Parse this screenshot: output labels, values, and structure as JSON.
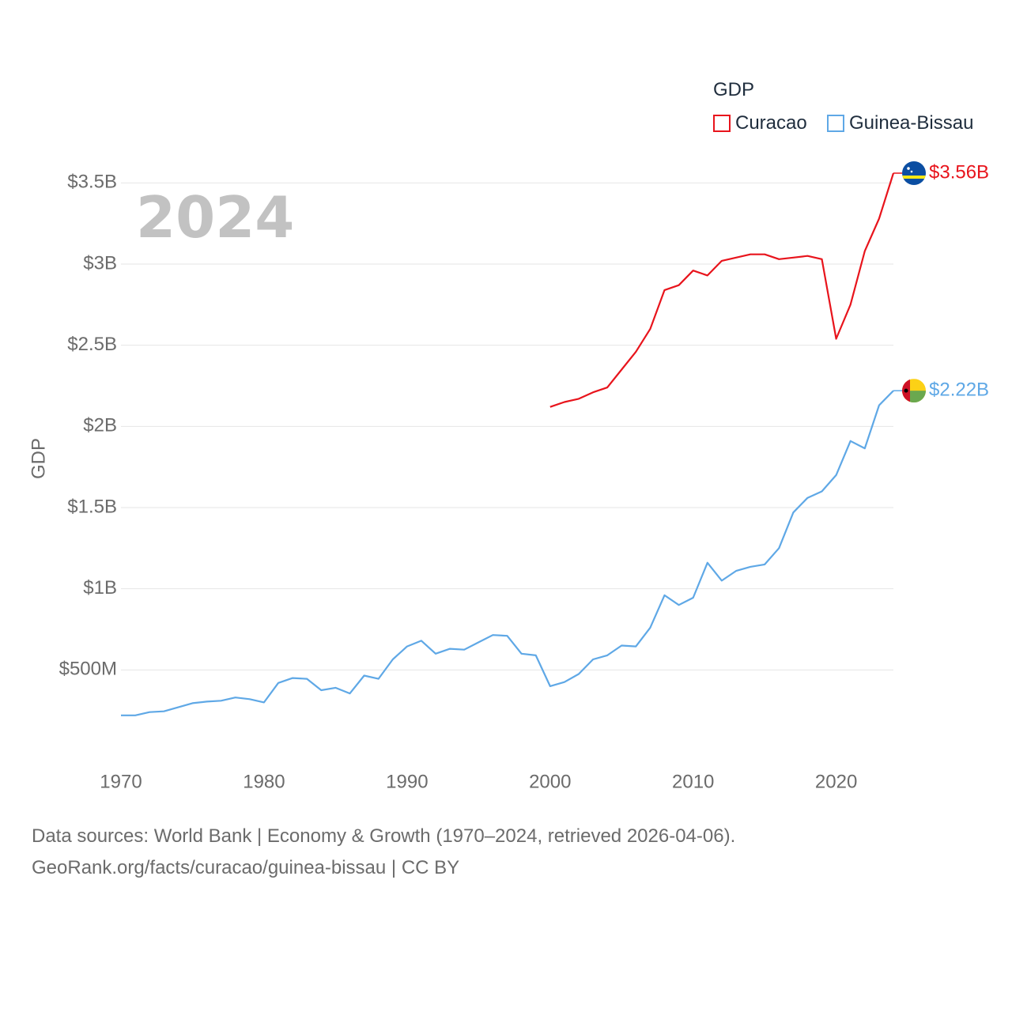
{
  "legend": {
    "title": "GDP",
    "items": [
      {
        "label": "Curacao",
        "color": "#e8141c"
      },
      {
        "label": "Guinea-Bissau",
        "color": "#5fa8e6"
      }
    ]
  },
  "source": {
    "line1": "Data sources: World Bank | Economy & Growth (1970–2024, retrieved 2026-04-06).",
    "line2": "GeoRank.org/facts/curacao/guinea-bissau | CC BY"
  },
  "chart_data": {
    "type": "line",
    "title": "",
    "year_label": "2024",
    "xlabel": "",
    "ylabel": "GDP",
    "xlim": [
      1970,
      2024
    ],
    "ylim": [
      0,
      3.75
    ],
    "x_ticks": [
      1970,
      1980,
      1990,
      2000,
      2010,
      2020
    ],
    "y_ticks": [
      {
        "value": 0.5,
        "label": "$500M"
      },
      {
        "value": 1.0,
        "label": "$1B"
      },
      {
        "value": 1.5,
        "label": "$1.5B"
      },
      {
        "value": 2.0,
        "label": "$2B"
      },
      {
        "value": 2.5,
        "label": "$2.5B"
      },
      {
        "value": 3.0,
        "label": "$3B"
      },
      {
        "value": 3.5,
        "label": "$3.5B"
      }
    ],
    "series": [
      {
        "name": "Curacao",
        "color": "#e8141c",
        "end_label": "$3.56B",
        "flag": "curacao-flag-icon",
        "x": [
          2000,
          2001,
          2002,
          2003,
          2004,
          2005,
          2006,
          2007,
          2008,
          2009,
          2010,
          2011,
          2012,
          2013,
          2014,
          2015,
          2016,
          2017,
          2018,
          2019,
          2020,
          2021,
          2022,
          2023,
          2024
        ],
        "values": [
          2.12,
          2.15,
          2.17,
          2.21,
          2.24,
          2.35,
          2.46,
          2.6,
          2.84,
          2.87,
          2.96,
          2.93,
          3.02,
          3.04,
          3.06,
          3.06,
          3.03,
          3.04,
          3.05,
          3.03,
          2.54,
          2.75,
          3.08,
          3.28,
          3.56
        ]
      },
      {
        "name": "Guinea-Bissau",
        "color": "#5fa8e6",
        "end_label": "$2.22B",
        "flag": "guinea-bissau-flag-icon",
        "x": [
          1970,
          1971,
          1972,
          1973,
          1974,
          1975,
          1976,
          1977,
          1978,
          1979,
          1980,
          1981,
          1982,
          1983,
          1984,
          1985,
          1986,
          1987,
          1988,
          1989,
          1990,
          1991,
          1992,
          1993,
          1994,
          1995,
          1996,
          1997,
          1998,
          1999,
          2000,
          2001,
          2002,
          2003,
          2004,
          2005,
          2006,
          2007,
          2008,
          2009,
          2010,
          2011,
          2012,
          2013,
          2014,
          2015,
          2016,
          2017,
          2018,
          2019,
          2020,
          2021,
          2022,
          2023,
          2024
        ],
        "values": [
          0.22,
          0.22,
          0.24,
          0.245,
          0.27,
          0.295,
          0.305,
          0.31,
          0.33,
          0.32,
          0.3,
          0.42,
          0.45,
          0.445,
          0.375,
          0.39,
          0.355,
          0.465,
          0.445,
          0.565,
          0.645,
          0.68,
          0.6,
          0.63,
          0.625,
          0.67,
          0.715,
          0.71,
          0.6,
          0.59,
          0.4,
          0.425,
          0.475,
          0.565,
          0.59,
          0.65,
          0.645,
          0.76,
          0.96,
          0.9,
          0.945,
          1.16,
          1.05,
          1.11,
          1.135,
          1.15,
          1.25,
          1.47,
          1.56,
          1.6,
          1.7,
          1.91,
          1.865,
          2.13,
          2.22
        ]
      }
    ]
  }
}
